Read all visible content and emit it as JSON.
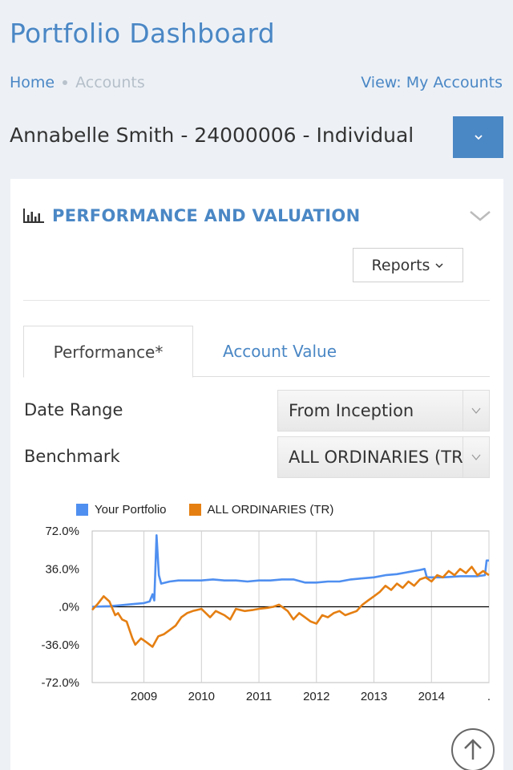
{
  "header": {
    "title": "Portfolio Dashboard",
    "breadcrumb": {
      "home": "Home",
      "current": "Accounts"
    },
    "view_link": "View: My Accounts"
  },
  "account": {
    "label": "Annabelle Smith - 24000006 - Individual"
  },
  "panel": {
    "title": "PERFORMANCE AND VALUATION",
    "reports_label": "Reports",
    "tabs": [
      {
        "label": "Performance*",
        "active": true
      },
      {
        "label": "Account Value",
        "active": false
      }
    ],
    "date_range": {
      "label": "Date Range",
      "value": "From Inception"
    },
    "benchmark": {
      "label": "Benchmark",
      "value": "ALL ORDINARIES (TR)"
    }
  },
  "colors": {
    "accent": "#4a87c5",
    "series_portfolio": "#4f8ff0",
    "series_benchmark": "#e57f12"
  },
  "chart_data": {
    "type": "line",
    "ylim": [
      -72,
      72
    ],
    "y_ticks": [
      "72.0%",
      "36.0%",
      ".0%",
      "-36.0%",
      "-72.0%"
    ],
    "y_tick_values": [
      72,
      36,
      0,
      -36,
      -72
    ],
    "x_ticks": [
      "2009",
      "2010",
      "2011",
      "2012",
      "2013",
      "2014",
      "."
    ],
    "x_tick_values": [
      2009,
      2010,
      2011,
      2012,
      2013,
      2014,
      2015
    ],
    "xlim": [
      2008.1,
      2015.0
    ],
    "grid": "vertical",
    "legend_position": "top",
    "series": [
      {
        "name": "Your Portfolio",
        "color": "#4f8ff0",
        "points": [
          [
            2008.1,
            0
          ],
          [
            2008.4,
            0.5
          ],
          [
            2008.6,
            1.5
          ],
          [
            2008.8,
            2.5
          ],
          [
            2009.0,
            3.5
          ],
          [
            2009.1,
            5
          ],
          [
            2009.15,
            12
          ],
          [
            2009.18,
            6
          ],
          [
            2009.22,
            68
          ],
          [
            2009.26,
            30
          ],
          [
            2009.3,
            22
          ],
          [
            2009.45,
            24
          ],
          [
            2009.6,
            25
          ],
          [
            2009.75,
            25
          ],
          [
            2009.9,
            25
          ],
          [
            2010.0,
            25
          ],
          [
            2010.2,
            26
          ],
          [
            2010.4,
            25
          ],
          [
            2010.6,
            25
          ],
          [
            2010.8,
            24
          ],
          [
            2011.0,
            25
          ],
          [
            2011.2,
            25
          ],
          [
            2011.4,
            26
          ],
          [
            2011.6,
            26
          ],
          [
            2011.8,
            23
          ],
          [
            2012.0,
            23
          ],
          [
            2012.2,
            24
          ],
          [
            2012.4,
            24
          ],
          [
            2012.6,
            26
          ],
          [
            2012.8,
            27
          ],
          [
            2013.0,
            28
          ],
          [
            2013.2,
            30
          ],
          [
            2013.4,
            31
          ],
          [
            2013.6,
            33
          ],
          [
            2013.8,
            35
          ],
          [
            2013.88,
            36
          ],
          [
            2013.92,
            28
          ],
          [
            2014.2,
            28
          ],
          [
            2014.5,
            29
          ],
          [
            2014.8,
            29
          ],
          [
            2014.93,
            30
          ],
          [
            2014.96,
            44
          ],
          [
            2015.0,
            44
          ]
        ]
      },
      {
        "name": "ALL ORDINARIES (TR)",
        "color": "#e57f12",
        "points": [
          [
            2008.1,
            -3
          ],
          [
            2008.2,
            3
          ],
          [
            2008.3,
            10
          ],
          [
            2008.4,
            5
          ],
          [
            2008.5,
            -8
          ],
          [
            2008.55,
            -6
          ],
          [
            2008.62,
            -12
          ],
          [
            2008.7,
            -14
          ],
          [
            2008.8,
            -30
          ],
          [
            2008.85,
            -36
          ],
          [
            2008.95,
            -30
          ],
          [
            2009.05,
            -34
          ],
          [
            2009.15,
            -38
          ],
          [
            2009.25,
            -28
          ],
          [
            2009.35,
            -26
          ],
          [
            2009.45,
            -22
          ],
          [
            2009.55,
            -18
          ],
          [
            2009.65,
            -10
          ],
          [
            2009.75,
            -6
          ],
          [
            2009.85,
            -4
          ],
          [
            2010.0,
            -2
          ],
          [
            2010.15,
            -10
          ],
          [
            2010.25,
            -4
          ],
          [
            2010.4,
            -8
          ],
          [
            2010.5,
            -12
          ],
          [
            2010.6,
            -2
          ],
          [
            2010.75,
            -4
          ],
          [
            2010.9,
            -3
          ],
          [
            2011.0,
            -2
          ],
          [
            2011.15,
            -1
          ],
          [
            2011.25,
            0
          ],
          [
            2011.35,
            2
          ],
          [
            2011.5,
            -4
          ],
          [
            2011.6,
            -12
          ],
          [
            2011.7,
            -6
          ],
          [
            2011.8,
            -10
          ],
          [
            2011.9,
            -14
          ],
          [
            2012.0,
            -16
          ],
          [
            2012.1,
            -8
          ],
          [
            2012.2,
            -10
          ],
          [
            2012.3,
            -6
          ],
          [
            2012.4,
            -4
          ],
          [
            2012.5,
            -8
          ],
          [
            2012.6,
            -6
          ],
          [
            2012.7,
            -4
          ],
          [
            2012.8,
            2
          ],
          [
            2012.9,
            6
          ],
          [
            2013.0,
            10
          ],
          [
            2013.1,
            14
          ],
          [
            2013.2,
            20
          ],
          [
            2013.3,
            16
          ],
          [
            2013.4,
            22
          ],
          [
            2013.5,
            18
          ],
          [
            2013.6,
            24
          ],
          [
            2013.7,
            20
          ],
          [
            2013.8,
            26
          ],
          [
            2013.9,
            28
          ],
          [
            2014.0,
            24
          ],
          [
            2014.1,
            30
          ],
          [
            2014.2,
            28
          ],
          [
            2014.3,
            34
          ],
          [
            2014.4,
            30
          ],
          [
            2014.5,
            36
          ],
          [
            2014.6,
            32
          ],
          [
            2014.7,
            38
          ],
          [
            2014.8,
            30
          ],
          [
            2014.9,
            34
          ],
          [
            2015.0,
            30
          ]
        ]
      }
    ]
  }
}
